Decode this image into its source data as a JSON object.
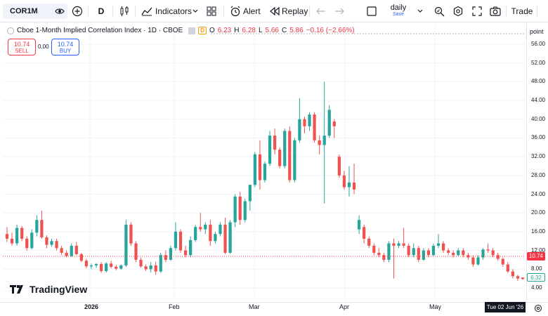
{
  "toolbar": {
    "symbol": "COR1M",
    "interval": "D",
    "indicators_label": "Indicators",
    "alert_label": "Alert",
    "replay_label": "Replay",
    "layout_name": "daily",
    "layout_status": "Save",
    "trade_label": "Trade",
    "icons": [
      "add-symbol-icon",
      "bar-style-icon",
      "indicators-icon",
      "templates-icon",
      "alert-icon",
      "replay-icon",
      "undo-icon",
      "redo-icon",
      "layout-icon",
      "quick-search-icon",
      "settings-icon",
      "fullscreen-icon",
      "camera-icon"
    ]
  },
  "legend": {
    "name": "Cboe 1-Month Implied Correlation Index · 1D · CBOE",
    "delayed": "D",
    "o_label": "O",
    "o_value": "6.23",
    "h_label": "H",
    "h_value": "6.28",
    "l_label": "L",
    "l_value": "5.66",
    "c_label": "C",
    "c_value": "5.86",
    "change": "−0.16 (−2.66%)"
  },
  "trade_panel": {
    "sell_price": "10.74",
    "sell_label": "SELL",
    "spread": "0.00",
    "buy_price": "10.74",
    "buy_label": "BUY"
  },
  "branding": {
    "logo_text": "TradingView"
  },
  "price_axis": {
    "unit": "point",
    "ticks": [
      "56.00",
      "52.00",
      "48.00",
      "44.00",
      "40.00",
      "36.00",
      "32.00",
      "28.00",
      "24.00",
      "20.00",
      "16.00",
      "12.00",
      "8.00",
      "4.00"
    ],
    "last_price": "10.74",
    "close_price": "6.32"
  },
  "time_axis": {
    "labels": [
      "2026",
      "Feb",
      "Mar",
      "Apr",
      "May"
    ],
    "cursor_date": "Tue 02 Jun '26"
  },
  "colors": {
    "up": "#26a69a",
    "down": "#ef5350",
    "grid": "#f0f3fa"
  },
  "chart_data": {
    "type": "candlestick",
    "ylim": [
      2,
      58
    ],
    "candles": [
      [
        15.5,
        17.0,
        13.8,
        14.5
      ],
      [
        14.5,
        15.8,
        13.0,
        13.5
      ],
      [
        13.5,
        17.5,
        13.0,
        16.8
      ],
      [
        16.8,
        17.2,
        14.0,
        14.5
      ],
      [
        14.5,
        15.0,
        12.0,
        12.5
      ],
      [
        12.5,
        16.5,
        12.2,
        15.8
      ],
      [
        15.8,
        19.5,
        15.0,
        18.5
      ],
      [
        18.5,
        20.5,
        14.5,
        14.8
      ],
      [
        14.8,
        15.2,
        12.5,
        13.2
      ],
      [
        13.2,
        14.5,
        12.8,
        14.0
      ],
      [
        14.0,
        14.5,
        12.0,
        12.5
      ],
      [
        12.5,
        13.0,
        11.0,
        11.5
      ],
      [
        11.5,
        12.0,
        10.5,
        10.8
      ],
      [
        10.8,
        13.5,
        10.6,
        13.0
      ],
      [
        13.0,
        13.8,
        11.0,
        11.2
      ],
      [
        11.2,
        11.5,
        9.5,
        9.8
      ],
      [
        9.8,
        10.2,
        8.2,
        8.6
      ],
      [
        8.6,
        9.2,
        8.0,
        8.8
      ],
      [
        8.8,
        9.3,
        8.3,
        9.1
      ],
      [
        9.1,
        9.5,
        7.2,
        7.6
      ],
      [
        7.6,
        9.5,
        7.3,
        9.2
      ],
      [
        9.2,
        9.8,
        8.2,
        8.5
      ],
      [
        8.5,
        8.9,
        7.8,
        8.1
      ],
      [
        8.1,
        9.0,
        7.9,
        8.8
      ],
      [
        8.8,
        18.5,
        8.5,
        17.5
      ],
      [
        17.5,
        18.0,
        13.0,
        13.5
      ],
      [
        13.5,
        14.0,
        9.5,
        10.0
      ],
      [
        10.0,
        10.5,
        8.3,
        8.6
      ],
      [
        8.6,
        9.0,
        7.6,
        8.0
      ],
      [
        8.0,
        9.5,
        7.3,
        8.8
      ],
      [
        8.8,
        9.6,
        6.8,
        7.5
      ],
      [
        7.5,
        11.5,
        7.2,
        11.0
      ],
      [
        11.0,
        12.0,
        9.5,
        10.0
      ],
      [
        10.0,
        13.0,
        9.8,
        12.5
      ],
      [
        12.5,
        18.0,
        12.0,
        16.0
      ],
      [
        16.0,
        16.5,
        11.5,
        12.0
      ],
      [
        12.0,
        13.0,
        10.5,
        11.0
      ],
      [
        11.0,
        15.0,
        10.5,
        14.2
      ],
      [
        14.2,
        17.5,
        13.8,
        17.0
      ],
      [
        17.0,
        20.0,
        16.0,
        16.5
      ],
      [
        16.5,
        18.0,
        15.5,
        17.5
      ],
      [
        17.5,
        18.5,
        13.0,
        14.0
      ],
      [
        14.0,
        16.0,
        13.5,
        15.5
      ],
      [
        15.5,
        18.0,
        15.0,
        17.5
      ],
      [
        17.5,
        19.0,
        11.2,
        11.5
      ],
      [
        11.5,
        18.5,
        11.3,
        18.0
      ],
      [
        18.0,
        24.0,
        17.0,
        23.5
      ],
      [
        23.5,
        24.5,
        17.5,
        18.5
      ],
      [
        18.5,
        23.0,
        18.0,
        22.5
      ],
      [
        22.5,
        26.0,
        20.5,
        26.0
      ],
      [
        26.0,
        33.0,
        25.5,
        32.5
      ],
      [
        32.5,
        35.5,
        25.0,
        27.0
      ],
      [
        27.0,
        31.0,
        26.5,
        30.5
      ],
      [
        30.5,
        37.5,
        30.0,
        36.5
      ],
      [
        36.5,
        38.0,
        32.5,
        33.5
      ],
      [
        33.5,
        34.0,
        29.5,
        30.0
      ],
      [
        30.0,
        38.0,
        29.5,
        37.5
      ],
      [
        37.5,
        38.5,
        26.5,
        27.0
      ],
      [
        27.0,
        36.0,
        26.5,
        35.5
      ],
      [
        35.5,
        44.5,
        35.0,
        40.0
      ],
      [
        40.0,
        40.5,
        37.0,
        38.5
      ],
      [
        38.5,
        41.5,
        37.5,
        41.0
      ],
      [
        41.0,
        41.5,
        35.0,
        35.5
      ],
      [
        35.5,
        36.5,
        32.5,
        34.5
      ],
      [
        34.5,
        48.0,
        22.0,
        36.5
      ],
      [
        36.5,
        43.0,
        36.0,
        42.0
      ],
      [
        39.5,
        40.0,
        36.0,
        38.5
      ],
      [
        32.0,
        32.5,
        27.5,
        28.0
      ],
      [
        28.0,
        29.0,
        25.0,
        25.5
      ],
      [
        25.5,
        30.0,
        23.5,
        26.5
      ],
      [
        26.5,
        30.5,
        24.0,
        25.0
      ],
      [
        16.5,
        19.5,
        15.5,
        18.5
      ],
      [
        17.0,
        17.5,
        13.5,
        14.5
      ],
      [
        14.5,
        15.0,
        12.5,
        13.0
      ],
      [
        13.0,
        13.5,
        11.0,
        11.5
      ],
      [
        11.5,
        12.5,
        10.5,
        11.0
      ],
      [
        11.0,
        11.5,
        9.5,
        10.0
      ],
      [
        10.0,
        14.0,
        9.5,
        13.5
      ],
      [
        13.5,
        14.5,
        6.0,
        13.0
      ],
      [
        13.0,
        14.0,
        12.5,
        13.5
      ],
      [
        13.5,
        16.8,
        12.5,
        13.0
      ],
      [
        13.0,
        13.5,
        10.5,
        11.0
      ],
      [
        11.0,
        13.5,
        10.5,
        12.5
      ],
      [
        12.5,
        13.0,
        9.5,
        10.0
      ],
      [
        10.0,
        12.5,
        9.8,
        12.0
      ],
      [
        12.0,
        12.5,
        10.5,
        11.0
      ],
      [
        11.0,
        13.5,
        10.8,
        13.0
      ],
      [
        13.0,
        15.5,
        12.5,
        13.5
      ],
      [
        13.5,
        14.0,
        11.5,
        12.0
      ],
      [
        12.0,
        12.5,
        11.0,
        11.5
      ],
      [
        11.5,
        12.0,
        10.5,
        11.0
      ],
      [
        11.0,
        12.5,
        10.8,
        12.0
      ],
      [
        12.0,
        12.5,
        10.5,
        11.0
      ],
      [
        11.0,
        11.5,
        10.0,
        10.5
      ],
      [
        10.5,
        11.0,
        8.5,
        9.0
      ],
      [
        9.0,
        11.0,
        8.8,
        10.5
      ],
      [
        10.5,
        12.5,
        10.0,
        12.2
      ],
      [
        12.2,
        13.5,
        11.5,
        12.0
      ],
      [
        12.0,
        12.5,
        10.5,
        11.0
      ],
      [
        11.0,
        11.5,
        9.8,
        10.2
      ],
      [
        10.2,
        10.5,
        8.5,
        9.0
      ],
      [
        9.0,
        9.5,
        7.2,
        7.5
      ],
      [
        7.5,
        8.0,
        6.0,
        6.5
      ],
      [
        6.5,
        6.8,
        5.5,
        6.0
      ],
      [
        6.2,
        6.3,
        5.7,
        5.9
      ]
    ]
  }
}
